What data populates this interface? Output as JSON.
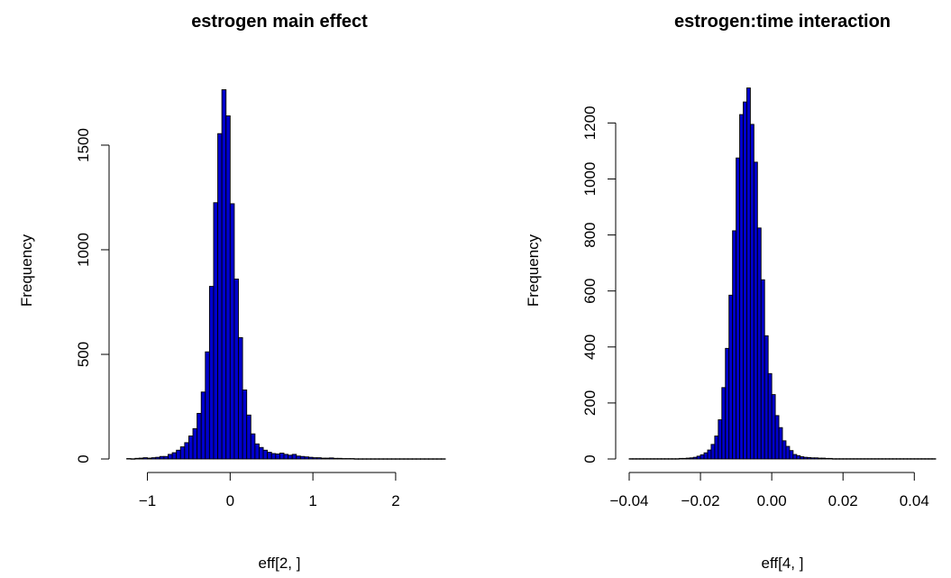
{
  "chart_data": [
    {
      "type": "bar",
      "title": "estrogen main effect",
      "xlabel": "eff[2, ]",
      "ylabel": "Frequency",
      "xlim": [
        -1.3,
        2.6
      ],
      "ylim": [
        0,
        1780
      ],
      "xticks": [
        -1,
        0,
        1,
        2
      ],
      "xtick_labels": [
        "−1",
        "0",
        "1",
        "2"
      ],
      "yticks": [
        0,
        500,
        1000,
        1500
      ],
      "ytick_labels": [
        "0",
        "500",
        "1000",
        "1500"
      ],
      "bin_start": -1.25,
      "bin_width": 0.05,
      "values": [
        2,
        1,
        3,
        4,
        6,
        4,
        6,
        8,
        12,
        12,
        22,
        30,
        42,
        58,
        78,
        110,
        145,
        218,
        320,
        512,
        825,
        1225,
        1555,
        1765,
        1640,
        1220,
        860,
        580,
        330,
        210,
        120,
        72,
        55,
        42,
        32,
        26,
        24,
        28,
        22,
        18,
        22,
        14,
        12,
        10,
        8,
        6,
        6,
        4,
        4,
        5,
        3,
        3,
        2,
        2,
        2,
        1,
        1,
        1,
        1,
        1,
        1,
        1,
        1,
        1,
        1,
        1,
        1,
        1,
        1,
        1,
        1,
        1,
        1,
        1,
        1,
        1,
        1
      ]
    },
    {
      "type": "bar",
      "title": "estrogen:time interaction",
      "xlabel": "eff[4, ]",
      "ylabel": "Frequency",
      "xlim": [
        -0.04,
        0.046
      ],
      "ylim": [
        0,
        1330
      ],
      "xticks": [
        -0.04,
        -0.02,
        0,
        0.02,
        0.04
      ],
      "xtick_labels": [
        "−0.04",
        "−0.02",
        "0.00",
        "0.02",
        "0.04"
      ],
      "yticks": [
        0,
        200,
        400,
        600,
        800,
        1000,
        1200
      ],
      "ytick_labels": [
        "0",
        "200",
        "400",
        "600",
        "800",
        "1000",
        "1200"
      ],
      "bin_start": -0.04,
      "bin_width": 0.001,
      "values": [
        1,
        1,
        1,
        1,
        1,
        1,
        1,
        1,
        1,
        1,
        1,
        1,
        1,
        1,
        2,
        2,
        3,
        4,
        6,
        10,
        15,
        22,
        32,
        52,
        82,
        140,
        255,
        395,
        585,
        815,
        1075,
        1230,
        1275,
        1325,
        1195,
        1060,
        825,
        640,
        440,
        305,
        230,
        155,
        112,
        65,
        45,
        30,
        16,
        12,
        8,
        6,
        5,
        4,
        4,
        3,
        3,
        2,
        2,
        1,
        1,
        1,
        1,
        1,
        1,
        1,
        1,
        1,
        1,
        1,
        1,
        1,
        1,
        1,
        1,
        1,
        1,
        1,
        1,
        1,
        1,
        1,
        1,
        1,
        1,
        1,
        1,
        1
      ]
    }
  ]
}
